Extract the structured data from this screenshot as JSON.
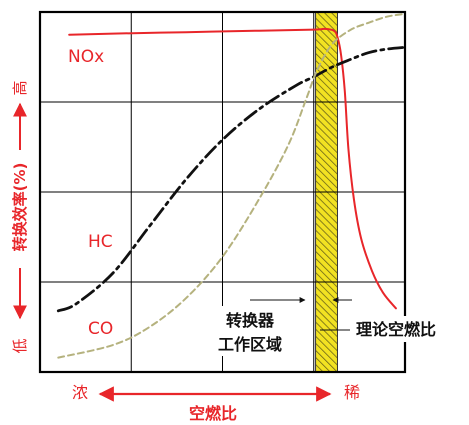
{
  "chart_data": {
    "type": "line",
    "title": "",
    "xlabel": "空燃比",
    "ylabel": "转换效率(%)",
    "x_axis_ends": {
      "left": "浓",
      "right": "稀"
    },
    "y_axis_ends": {
      "top": "高",
      "bottom": "低"
    },
    "grid": true,
    "x_range": [
      0,
      10
    ],
    "y_range": [
      0,
      100
    ],
    "series": [
      {
        "name": "NOx",
        "style": "solid",
        "color": "#e8262a",
        "points": [
          [
            0.8,
            93.7
          ],
          [
            2.0,
            94.0
          ],
          [
            4.0,
            94.4
          ],
          [
            6.0,
            94.8
          ],
          [
            7.5,
            95.1
          ],
          [
            7.8,
            95.3
          ],
          [
            8.05,
            94.8
          ],
          [
            8.15,
            93.0
          ],
          [
            8.25,
            88.0
          ],
          [
            8.35,
            78.0
          ],
          [
            8.45,
            62.0
          ],
          [
            8.6,
            48.0
          ],
          [
            8.8,
            37.0
          ],
          [
            9.1,
            28.0
          ],
          [
            9.4,
            22.0
          ],
          [
            9.75,
            17.7
          ]
        ]
      },
      {
        "name": "HC",
        "style": "dash-dot",
        "color": "#111111",
        "points": [
          [
            0.5,
            17.0
          ],
          [
            1.0,
            19.0
          ],
          [
            2.0,
            27.5
          ],
          [
            3.0,
            40.5
          ],
          [
            4.0,
            53.5
          ],
          [
            5.0,
            64.5
          ],
          [
            6.0,
            73.0
          ],
          [
            7.0,
            79.5
          ],
          [
            7.5,
            82.0
          ],
          [
            8.0,
            84.7
          ],
          [
            8.5,
            86.8
          ],
          [
            9.0,
            88.7
          ],
          [
            9.5,
            89.7
          ],
          [
            10.0,
            90.2
          ]
        ]
      },
      {
        "name": "CO",
        "style": "dashed",
        "color": "#b5b27e",
        "points": [
          [
            0.5,
            4.0
          ],
          [
            2.0,
            7.5
          ],
          [
            3.0,
            12.5
          ],
          [
            4.0,
            20.5
          ],
          [
            5.0,
            32.0
          ],
          [
            6.0,
            48.0
          ],
          [
            6.8,
            63.0
          ],
          [
            7.3,
            76.0
          ],
          [
            7.6,
            84.0
          ],
          [
            8.0,
            91.0
          ],
          [
            8.5,
            95.0
          ],
          [
            9.0,
            97.0
          ],
          [
            9.5,
            98.7
          ],
          [
            10.0,
            99.5
          ]
        ]
      }
    ],
    "band": {
      "x_range": [
        7.55,
        8.15
      ],
      "fill": "#f2e222",
      "hatch": true
    },
    "annotations": [
      {
        "text": "转换器\n工作区域",
        "target": "band"
      },
      {
        "text": "理论空燃比",
        "target": "band-center"
      }
    ],
    "colors": {
      "accent": "#e8262a",
      "grid": "#000000"
    }
  }
}
